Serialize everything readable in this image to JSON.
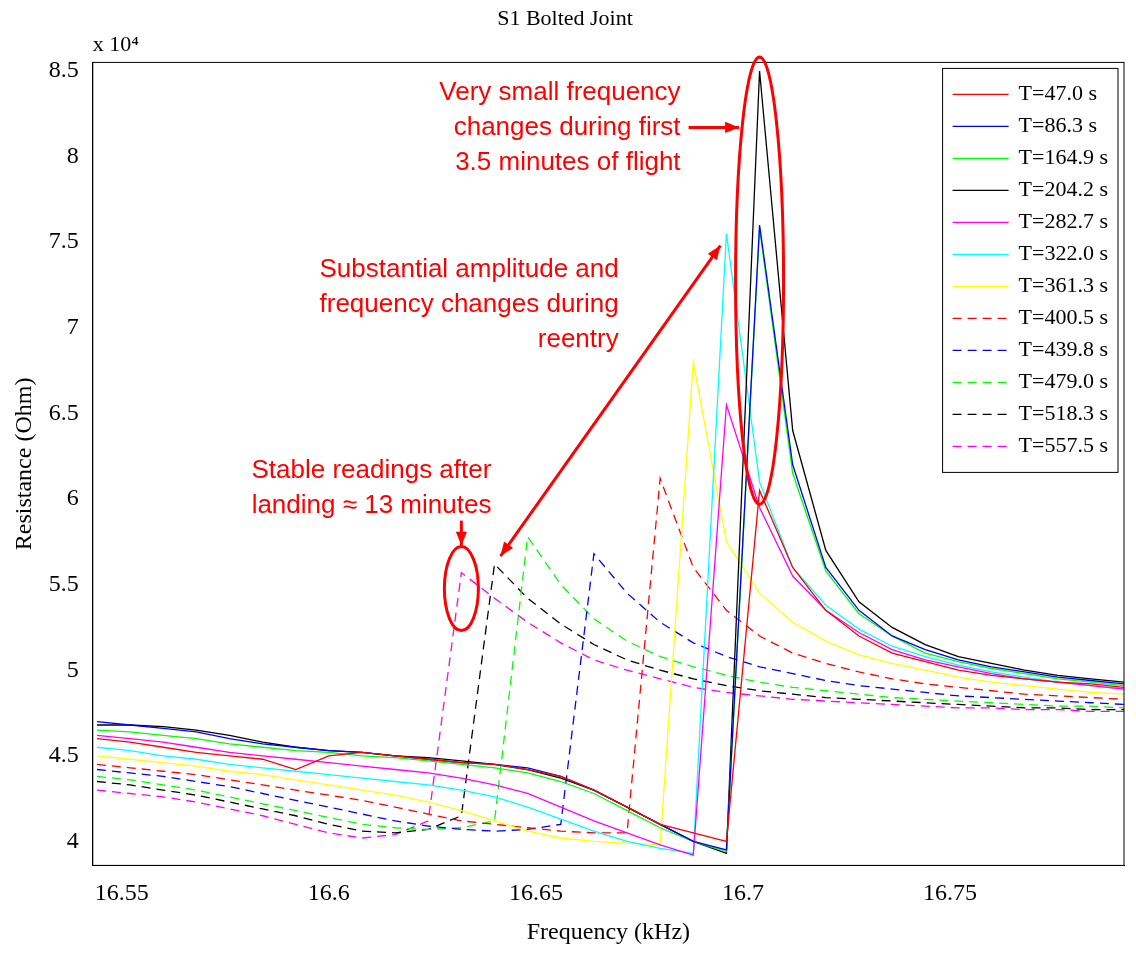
{
  "chart_data": {
    "type": "line",
    "title": "S1 Bolted Joint",
    "x_label": "Frequency (kHz)",
    "y_label": "Resistance (Ohm)",
    "y_multiplier": "x 10⁴",
    "x": [
      16.544,
      16.552,
      16.56,
      16.568,
      16.576,
      16.584,
      16.592,
      16.6,
      16.608,
      16.616,
      16.624,
      16.632,
      16.64,
      16.648,
      16.656,
      16.664,
      16.672,
      16.68,
      16.688,
      16.696,
      16.704,
      16.712,
      16.72,
      16.728,
      16.736,
      16.744,
      16.752,
      16.76,
      16.768,
      16.776,
      16.784,
      16.792
    ],
    "series": [
      {
        "name": "T=47.0 s",
        "color": "#ff0000",
        "line_style": "solid",
        "values": [
          4.6,
          4.58,
          4.55,
          4.52,
          4.5,
          4.48,
          4.42,
          4.5,
          4.52,
          4.5,
          4.48,
          4.46,
          4.45,
          4.42,
          4.38,
          4.3,
          4.2,
          4.1,
          4.05,
          4.0,
          6.05,
          5.6,
          5.35,
          5.2,
          5.1,
          5.05,
          5.0,
          4.97,
          4.95,
          4.93,
          4.92,
          4.9
        ]
      },
      {
        "name": "T=86.3 s",
        "color": "#0000ff",
        "line_style": "solid",
        "values": [
          4.7,
          4.68,
          4.66,
          4.64,
          4.6,
          4.57,
          4.55,
          4.53,
          4.52,
          4.5,
          4.48,
          4.46,
          4.45,
          4.43,
          4.38,
          4.3,
          4.2,
          4.1,
          4.0,
          3.95,
          7.6,
          6.2,
          5.6,
          5.35,
          5.2,
          5.12,
          5.06,
          5.02,
          4.99,
          4.96,
          4.94,
          4.92
        ]
      },
      {
        "name": "T=164.9 s",
        "color": "#00ff00",
        "line_style": "solid",
        "values": [
          4.65,
          4.64,
          4.62,
          4.6,
          4.57,
          4.55,
          4.53,
          4.52,
          4.5,
          4.49,
          4.47,
          4.45,
          4.43,
          4.4,
          4.35,
          4.28,
          4.18,
          4.08,
          4.0,
          3.94,
          7.58,
          6.15,
          5.58,
          5.33,
          5.2,
          5.1,
          5.05,
          5.01,
          4.98,
          4.95,
          4.93,
          4.91
        ]
      },
      {
        "name": "T=204.2 s",
        "color": "#000000",
        "line_style": "solid",
        "values": [
          4.68,
          4.68,
          4.67,
          4.65,
          4.62,
          4.58,
          4.55,
          4.53,
          4.52,
          4.5,
          4.49,
          4.47,
          4.45,
          4.42,
          4.37,
          4.3,
          4.2,
          4.1,
          4.0,
          3.93,
          8.5,
          6.4,
          5.7,
          5.4,
          5.25,
          5.15,
          5.08,
          5.04,
          5.0,
          4.97,
          4.95,
          4.93
        ]
      },
      {
        "name": "T=282.7 s",
        "color": "#ff00ff",
        "line_style": "solid",
        "values": [
          4.62,
          4.6,
          4.58,
          4.55,
          4.52,
          4.5,
          4.48,
          4.46,
          4.44,
          4.42,
          4.4,
          4.37,
          4.33,
          4.28,
          4.2,
          4.12,
          4.05,
          3.98,
          3.92,
          6.55,
          5.95,
          5.55,
          5.35,
          5.22,
          5.12,
          5.06,
          5.02,
          4.98,
          4.95,
          4.93,
          4.91,
          4.89
        ]
      },
      {
        "name": "T=322.0 s",
        "color": "#00ffff",
        "line_style": "solid",
        "values": [
          4.55,
          4.53,
          4.5,
          4.48,
          4.45,
          4.43,
          4.41,
          4.39,
          4.37,
          4.35,
          4.33,
          4.3,
          4.26,
          4.2,
          4.13,
          4.06,
          4.0,
          3.96,
          3.93,
          7.55,
          6.1,
          5.6,
          5.38,
          5.24,
          5.14,
          5.08,
          5.03,
          4.99,
          4.96,
          4.93,
          4.91,
          4.89
        ]
      },
      {
        "name": "T=361.3 s",
        "color": "#ffff00",
        "line_style": "solid",
        "values": [
          4.5,
          4.48,
          4.46,
          4.44,
          4.41,
          4.39,
          4.36,
          4.33,
          4.3,
          4.27,
          4.23,
          4.18,
          4.12,
          4.06,
          4.02,
          4.0,
          3.99,
          3.98,
          6.8,
          5.75,
          5.45,
          5.28,
          5.17,
          5.09,
          5.04,
          5.0,
          4.96,
          4.93,
          4.91,
          4.89,
          4.87,
          4.86
        ]
      },
      {
        "name": "T=400.5 s",
        "color": "#ff0000",
        "line_style": "dashed",
        "values": [
          4.45,
          4.43,
          4.41,
          4.39,
          4.36,
          4.33,
          4.3,
          4.27,
          4.24,
          4.2,
          4.16,
          4.12,
          4.1,
          4.08,
          4.06,
          4.05,
          4.05,
          6.12,
          5.6,
          5.35,
          5.2,
          5.1,
          5.04,
          4.99,
          4.95,
          4.92,
          4.9,
          4.88,
          4.86,
          4.85,
          4.84,
          4.83
        ]
      },
      {
        "name": "T=439.8 s",
        "color": "#0000ff",
        "line_style": "dashed",
        "values": [
          4.42,
          4.4,
          4.38,
          4.35,
          4.32,
          4.28,
          4.24,
          4.2,
          4.16,
          4.12,
          4.09,
          4.07,
          4.06,
          4.07,
          4.1,
          5.68,
          5.45,
          5.28,
          5.16,
          5.08,
          5.02,
          4.98,
          4.94,
          4.91,
          4.89,
          4.87,
          4.85,
          4.84,
          4.83,
          4.82,
          4.81,
          4.8
        ]
      },
      {
        "name": "T=479.0 s",
        "color": "#00ff00",
        "line_style": "dashed",
        "values": [
          4.38,
          4.36,
          4.33,
          4.3,
          4.26,
          4.22,
          4.18,
          4.14,
          4.1,
          4.08,
          4.07,
          4.08,
          4.12,
          5.78,
          5.5,
          5.3,
          5.17,
          5.08,
          5.02,
          4.97,
          4.93,
          4.9,
          4.88,
          4.86,
          4.84,
          4.83,
          4.82,
          4.81,
          4.8,
          4.79,
          4.79,
          4.78
        ]
      },
      {
        "name": "T=518.3 s",
        "color": "#000000",
        "line_style": "dashed",
        "values": [
          4.35,
          4.33,
          4.3,
          4.27,
          4.23,
          4.19,
          4.15,
          4.1,
          4.06,
          4.05,
          4.07,
          4.15,
          5.62,
          5.42,
          5.27,
          5.15,
          5.06,
          5.0,
          4.95,
          4.91,
          4.88,
          4.86,
          4.84,
          4.83,
          4.82,
          4.81,
          4.8,
          4.79,
          4.78,
          4.78,
          4.77,
          4.77
        ]
      },
      {
        "name": "T=557.5 s",
        "color": "#ff00ff",
        "line_style": "dashed",
        "values": [
          4.3,
          4.28,
          4.26,
          4.23,
          4.19,
          4.15,
          4.1,
          4.05,
          4.02,
          4.04,
          4.12,
          5.57,
          5.42,
          5.28,
          5.16,
          5.06,
          5.0,
          4.95,
          4.9,
          4.87,
          4.85,
          4.83,
          4.82,
          4.81,
          4.8,
          4.79,
          4.78,
          4.78,
          4.77,
          4.77,
          4.76,
          4.76
        ]
      }
    ],
    "xlim": [
      16.543,
      16.792
    ],
    "xticks": [
      16.55,
      16.6,
      16.65,
      16.7,
      16.75
    ],
    "ylim": [
      3.86,
      8.55
    ],
    "yticks": [
      4,
      4.5,
      5,
      5.5,
      6,
      6.5,
      7,
      7.5,
      8,
      8.5
    ],
    "grid": false,
    "legend": "upper right",
    "annotations": [
      {
        "lines": [
          "Very small frequency",
          "changes during first",
          "3.5 minutes of flight"
        ]
      },
      {
        "lines": [
          "Substantial amplitude and",
          "frequency changes during",
          "reentry"
        ]
      },
      {
        "lines": [
          "Stable readings after",
          "landing ≈ 13 minutes"
        ]
      }
    ]
  }
}
